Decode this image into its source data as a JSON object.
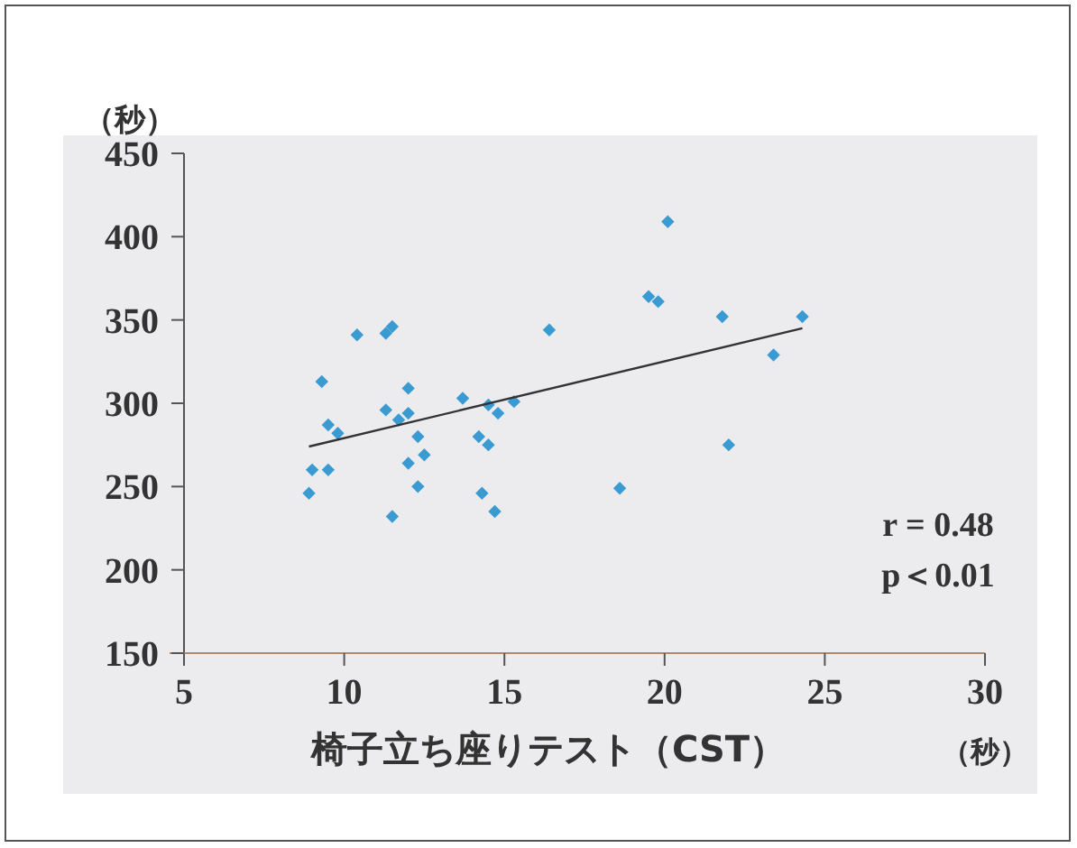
{
  "chart_data": {
    "type": "scatter",
    "xlabel": "椅子立ち座りテスト（CST）",
    "ylabel": "（秒）",
    "xlim": [
      5,
      30
    ],
    "xticks": [
      5,
      10,
      15,
      20,
      25,
      30
    ],
    "ylim": [
      150,
      450
    ],
    "yticks": [
      150,
      200,
      250,
      300,
      350,
      400,
      450
    ],
    "marker": "diamond",
    "annotations": [
      "（秒）",
      "r = 0.48",
      "p＜0.01"
    ],
    "series": [
      {
        "color": "#3a9ad2",
        "x": [
          8.9,
          9.0,
          9.3,
          9.5,
          9.5,
          9.8,
          10.4,
          11.3,
          11.5,
          11.5,
          11.3,
          11.7,
          12.0,
          12.0,
          12.3,
          12.0,
          12.5,
          12.3,
          13.7,
          14.2,
          14.5,
          14.3,
          14.7,
          14.5,
          14.8,
          15.3,
          16.4,
          20.1,
          19.5,
          19.8,
          18.6,
          21.8,
          22.0,
          23.4,
          24.3
        ],
        "values": [
          246,
          260,
          313,
          260,
          287,
          282,
          341,
          342,
          346,
          232,
          296,
          290,
          294,
          309,
          280,
          264,
          269,
          250,
          303,
          280,
          275,
          246,
          235,
          299,
          294,
          301,
          344,
          409,
          364,
          361,
          249,
          352,
          275,
          329,
          352
        ]
      },
      {
        "type": "line",
        "color": "#333333",
        "marker": "none",
        "line_style": "solid",
        "x": [
          8.9,
          24.3
        ],
        "values": [
          274,
          345
        ]
      }
    ]
  }
}
